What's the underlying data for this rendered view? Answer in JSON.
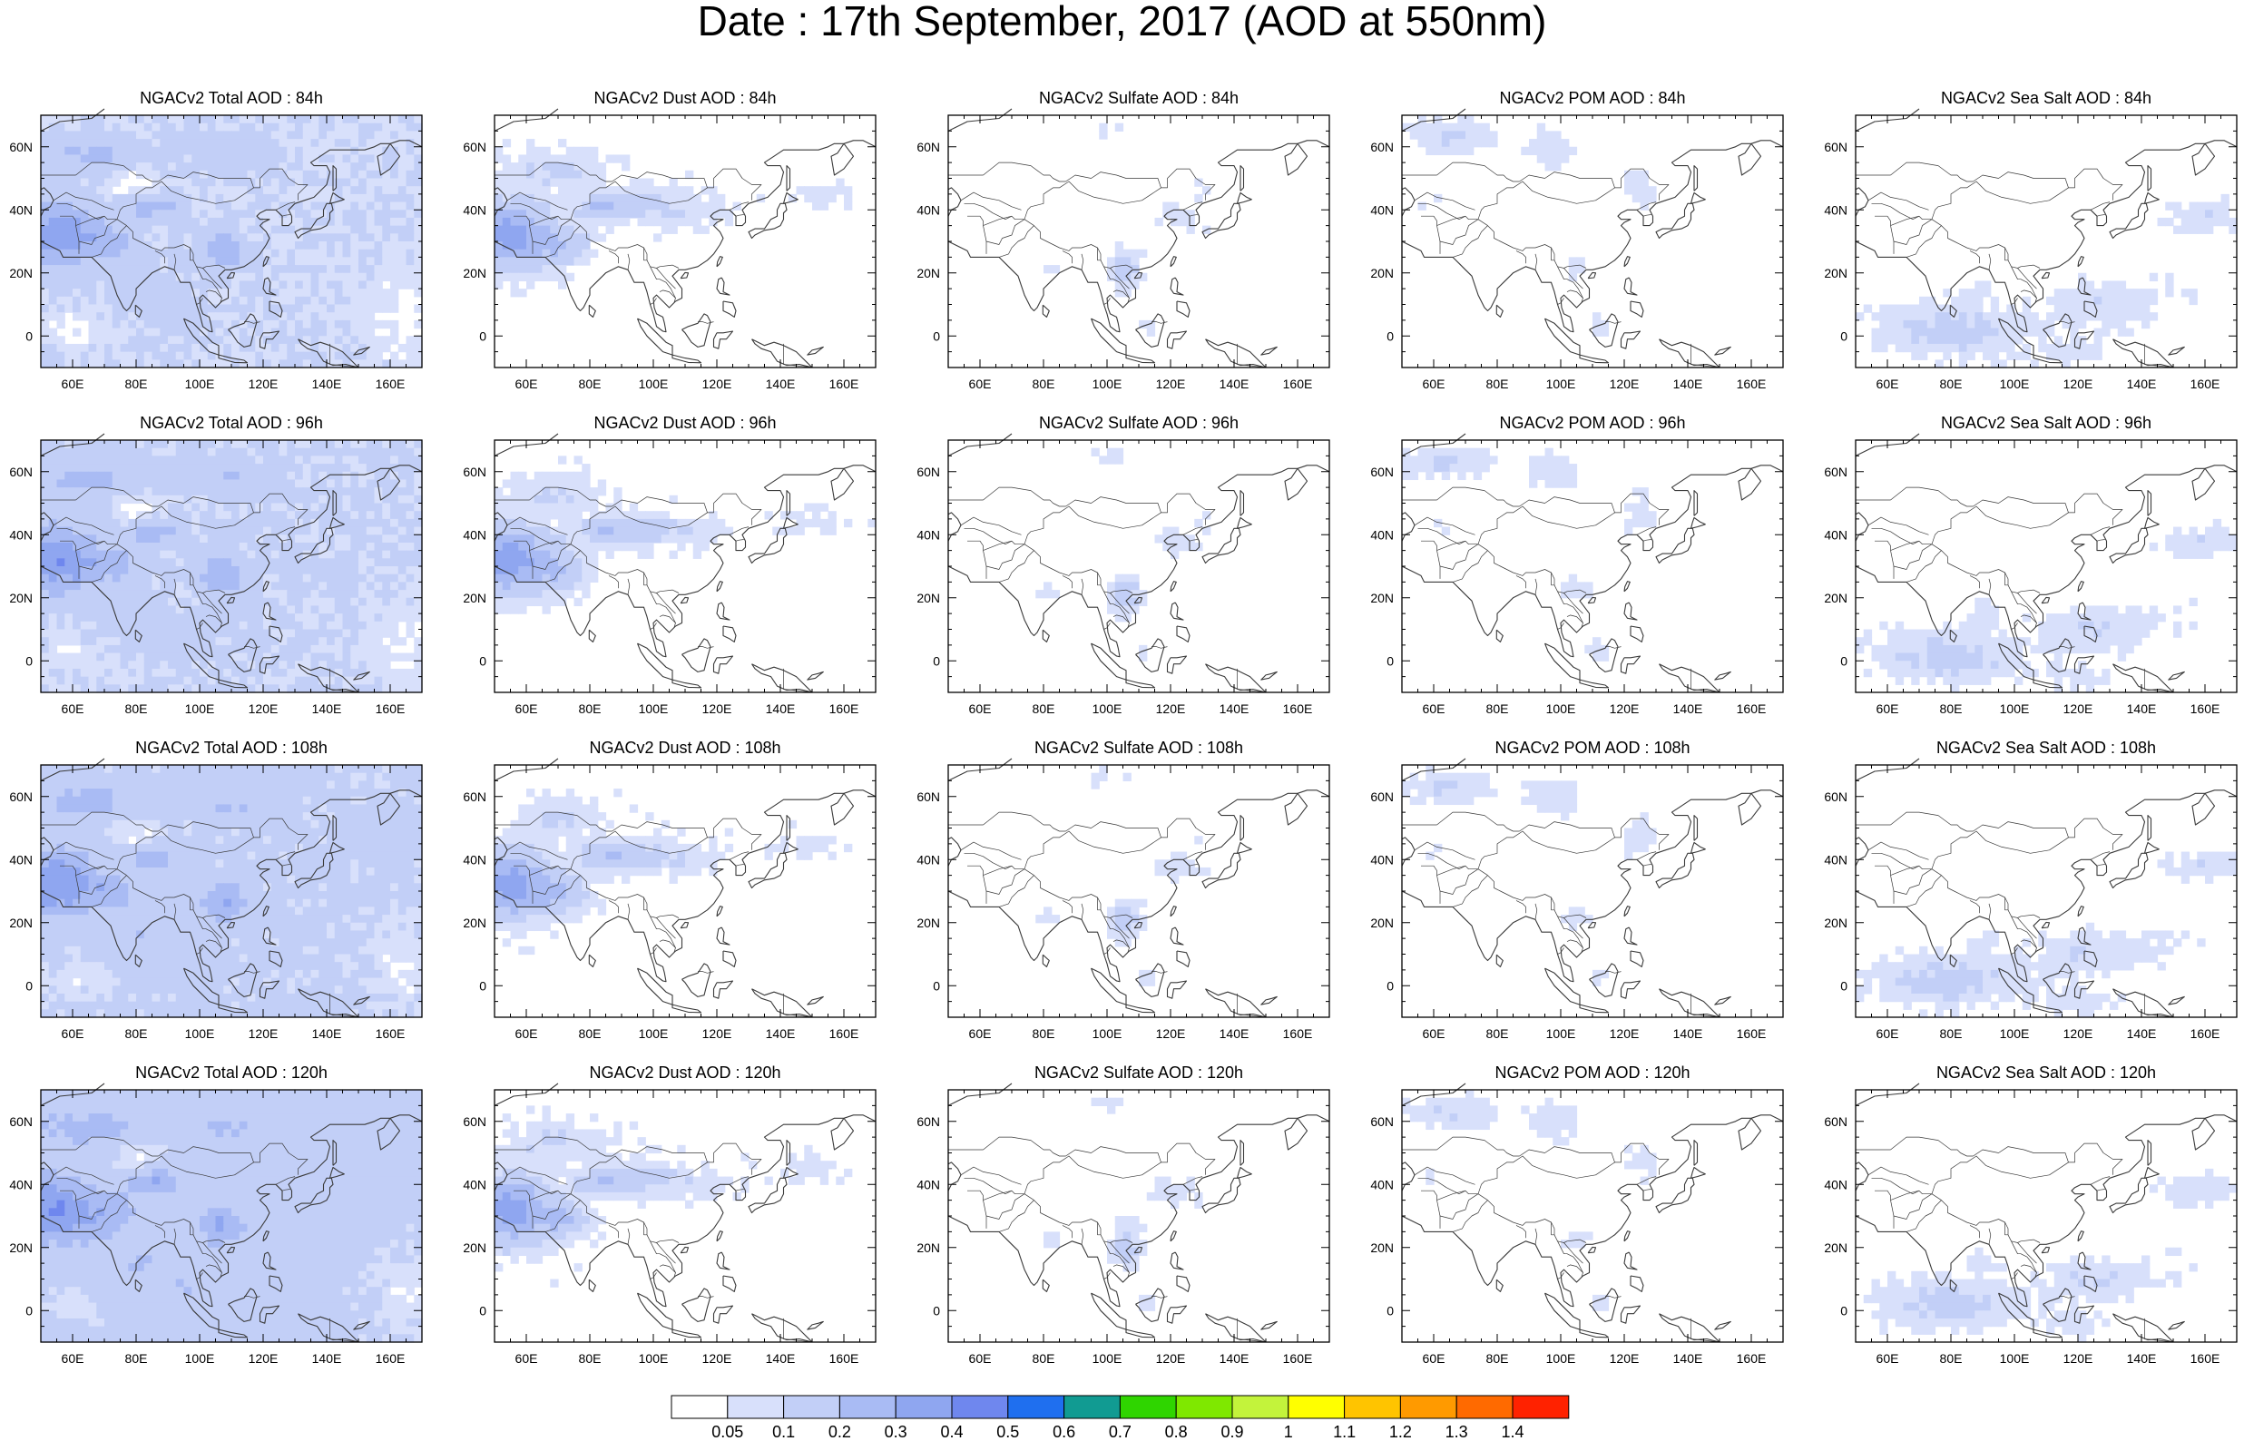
{
  "title": "Date : 17th September, 2017 (AOD at 550nm)",
  "lat_labels": [
    "60N",
    "40N",
    "20N",
    "0"
  ],
  "lon_labels": [
    "60E",
    "80E",
    "100E",
    "120E",
    "140E",
    "160E"
  ],
  "colorbar": {
    "labels": [
      "0.05",
      "0.1",
      "0.2",
      "0.3",
      "0.4",
      "0.5",
      "0.6",
      "0.7",
      "0.8",
      "0.9",
      "1",
      "1.1",
      "1.2",
      "1.3",
      "1.4"
    ],
    "colors": [
      "#ffffff",
      "#d8e0fb",
      "#c2cff7",
      "#a9bbf4",
      "#8fa6f0",
      "#6f87ee",
      "#1f6fef",
      "#119b92",
      "#2fd500",
      "#7fe800",
      "#c3f33b",
      "#ffff00",
      "#ffc400",
      "#ff9a00",
      "#ff6a00",
      "#ff2200"
    ]
  },
  "rows": [
    {
      "hour": "84h",
      "titles": [
        "NGACv2 Total AOD : 84h",
        "NGACv2 Dust AOD : 84h",
        "NGACv2 Sulfate AOD : 84h",
        "NGACv2 POM AOD : 84h",
        "NGACv2 Sea Salt AOD : 84h"
      ]
    },
    {
      "hour": "96h",
      "titles": [
        "NGACv2 Total AOD : 96h",
        "NGACv2 Dust AOD : 96h",
        "NGACv2 Sulfate AOD : 96h",
        "NGACv2 POM AOD : 96h",
        "NGACv2 Sea Salt AOD : 96h"
      ]
    },
    {
      "hour": "108h",
      "titles": [
        "NGACv2 Total AOD : 108h",
        "NGACv2 Dust AOD : 108h",
        "NGACv2 Sulfate AOD : 108h",
        "NGACv2 POM AOD : 108h",
        "NGACv2 Sea Salt AOD : 108h"
      ]
    },
    {
      "hour": "120h",
      "titles": [
        "NGACv2 Total AOD : 120h",
        "NGACv2 Dust AOD : 120h",
        "NGACv2 Sulfate AOD : 120h",
        "NGACv2 POM AOD : 120h",
        "NGACv2 Sea Salt  AOD : 120h"
      ]
    }
  ]
}
